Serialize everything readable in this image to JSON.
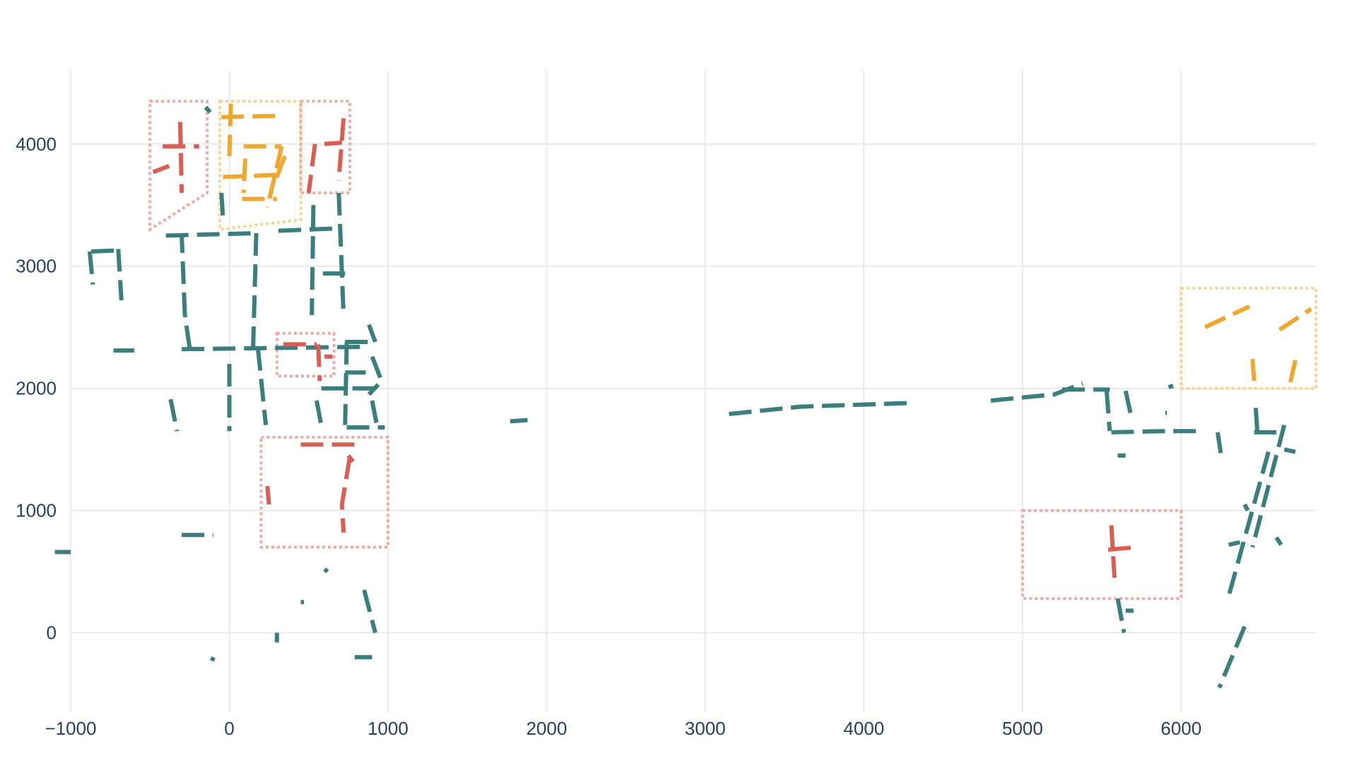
{
  "chart_data": {
    "type": "line",
    "title": "",
    "xlabel": "",
    "ylabel": "",
    "xlim": [
      -1000,
      6850
    ],
    "ylim": [
      -650,
      4600
    ],
    "x_ticks": [
      -1000,
      0,
      1000,
      2000,
      3000,
      4000,
      5000,
      6000
    ],
    "x_tick_labels": [
      "−1000",
      "0",
      "1000",
      "2000",
      "3000",
      "4000",
      "5000",
      "6000"
    ],
    "y_ticks": [
      0,
      1000,
      2000,
      3000,
      4000
    ],
    "y_tick_labels": [
      "0",
      "1000",
      "2000",
      "3000",
      "4000"
    ],
    "grid": true,
    "legend": "none",
    "colors": {
      "network": "#3a7f7d",
      "red": "#d95f55",
      "orange": "#eea72f",
      "red_box": "#eea9a4",
      "orange_box": "#f6d48e",
      "grid": "#e5e5e5",
      "tick_text": "#2a3f5f"
    },
    "series": [
      {
        "color_key": "network",
        "dashed": true,
        "lines": [
          [
            [
              -400,
              3250
            ],
            [
              170,
              3270
            ]
          ],
          [
            [
              170,
              3270
            ],
            [
              150,
              2330
            ]
          ],
          [
            [
              -300,
              2320
            ],
            [
              850,
              2340
            ]
          ],
          [
            [
              -280,
              2600
            ],
            [
              -300,
              3250
            ]
          ],
          [
            [
              -250,
              2330
            ],
            [
              -280,
              2600
            ]
          ],
          [
            [
              180,
              2330
            ],
            [
              230,
              1700
            ]
          ],
          [
            [
              310,
              3290
            ],
            [
              700,
              3310
            ]
          ],
          [
            [
              690,
              3600
            ],
            [
              720,
              2600
            ]
          ],
          [
            [
              530,
              3500
            ],
            [
              520,
              2600
            ]
          ],
          [
            [
              -870,
              3120
            ],
            [
              -690,
              3130
            ]
          ],
          [
            [
              -700,
              3140
            ],
            [
              -680,
              2720
            ]
          ],
          [
            [
              -880,
              3120
            ],
            [
              -860,
              2850
            ]
          ],
          [
            [
              -730,
              2310
            ],
            [
              -600,
              2310
            ]
          ],
          [
            [
              -370,
              1910
            ],
            [
              -330,
              1650
            ]
          ],
          [
            [
              0,
              2200
            ],
            [
              0,
              1650
            ]
          ],
          [
            [
              590,
              2940
            ],
            [
              730,
              2940
            ]
          ],
          [
            [
              730,
              2380
            ],
            [
              920,
              2380
            ]
          ],
          [
            [
              740,
              2380
            ],
            [
              730,
              1700
            ]
          ],
          [
            [
              880,
              2520
            ],
            [
              920,
              2380
            ]
          ],
          [
            [
              900,
              2260
            ],
            [
              960,
              2060
            ],
            [
              880,
              1950
            ]
          ],
          [
            [
              730,
              2130
            ],
            [
              860,
              2130
            ]
          ],
          [
            [
              580,
              2000
            ],
            [
              920,
              2000
            ]
          ],
          [
            [
              550,
              1900
            ],
            [
              580,
              1700
            ]
          ],
          [
            [
              740,
              1680
            ],
            [
              980,
              1680
            ]
          ],
          [
            [
              900,
              1900
            ],
            [
              930,
              1700
            ]
          ],
          [
            [
              -300,
              800
            ],
            [
              -100,
              800
            ]
          ],
          [
            [
              -1100,
              660
            ],
            [
              -1000,
              660
            ]
          ],
          [
            [
              850,
              350
            ],
            [
              920,
              0
            ]
          ],
          [
            [
              790,
              -200
            ],
            [
              900,
              -200
            ]
          ],
          [
            [
              450,
              250
            ],
            [
              470,
              250
            ]
          ],
          [
            [
              300,
              0
            ],
            [
              300,
              -80
            ]
          ],
          [
            [
              -100,
              -200
            ],
            [
              -110,
              -230
            ]
          ],
          [
            [
              600,
              520
            ],
            [
              620,
              500
            ]
          ],
          [
            [
              -150,
              4300
            ],
            [
              -120,
              4260
            ]
          ],
          [
            [
              -50,
              3600
            ],
            [
              -40,
              3400
            ]
          ],
          [
            [
              1770,
              1730
            ],
            [
              1880,
              1740
            ]
          ],
          [
            [
              3150,
              1790
            ],
            [
              3600,
              1850
            ],
            [
              4300,
              1880
            ]
          ],
          [
            [
              4800,
              1900
            ],
            [
              5200,
              1950
            ],
            [
              5380,
              2040
            ]
          ],
          [
            [
              5250,
              1990
            ],
            [
              5550,
              1990
            ]
          ],
          [
            [
              5530,
              1980
            ],
            [
              5550,
              1650
            ]
          ],
          [
            [
              5560,
              1640
            ],
            [
              5900,
              1650
            ]
          ],
          [
            [
              5650,
              1980
            ],
            [
              5680,
              1800
            ]
          ],
          [
            [
              5950,
              1650
            ],
            [
              6100,
              1650
            ]
          ],
          [
            [
              6230,
              1640
            ],
            [
              6250,
              1470
            ]
          ],
          [
            [
              6460,
              1640
            ],
            [
              6600,
              1640
            ]
          ],
          [
            [
              6470,
              1840
            ],
            [
              6480,
              1640
            ]
          ],
          [
            [
              6650,
              1700
            ],
            [
              6450,
              700
            ]
          ],
          [
            [
              6650,
              1500
            ],
            [
              6720,
              1480
            ]
          ],
          [
            [
              6550,
              1480
            ],
            [
              6300,
              300
            ]
          ],
          [
            [
              5600,
              1450
            ],
            [
              5650,
              1450
            ]
          ],
          [
            [
              5600,
              280
            ],
            [
              5640,
              0
            ]
          ],
          [
            [
              5650,
              180
            ],
            [
              5700,
              180
            ]
          ],
          [
            [
              6300,
              720
            ],
            [
              6370,
              740
            ]
          ],
          [
            [
              6400,
              1050
            ],
            [
              6420,
              1000
            ]
          ],
          [
            [
              6600,
              780
            ],
            [
              6630,
              720
            ]
          ],
          [
            [
              6400,
              50
            ],
            [
              6240,
              -450
            ]
          ],
          [
            [
              5920,
              2010
            ],
            [
              5950,
              2020
            ]
          ],
          [
            [
              5900,
              1800
            ],
            [
              5910,
              1800
            ]
          ]
        ]
      },
      {
        "color_key": "red",
        "dashed": true,
        "lines": [
          [
            [
              -420,
              3980
            ],
            [
              -190,
              3980
            ]
          ],
          [
            [
              -310,
              4180
            ],
            [
              -300,
              3600
            ]
          ],
          [
            [
              -480,
              3770
            ],
            [
              -380,
              3820
            ]
          ],
          [
            [
              600,
              4000
            ],
            [
              710,
              4010
            ]
          ],
          [
            [
              720,
              4210
            ],
            [
              690,
              3700
            ]
          ],
          [
            [
              540,
              4000
            ],
            [
              500,
              3600
            ]
          ],
          [
            [
              340,
              2360
            ],
            [
              550,
              2360
            ]
          ],
          [
            [
              560,
              2360
            ],
            [
              570,
              2060
            ]
          ],
          [
            [
              600,
              2260
            ],
            [
              650,
              2260
            ]
          ],
          [
            [
              450,
              1540
            ],
            [
              800,
              1540
            ]
          ],
          [
            [
              760,
              1440
            ],
            [
              710,
              1050
            ],
            [
              720,
              820
            ]
          ],
          [
            [
              750,
              1450
            ],
            [
              780,
              1400
            ]
          ],
          [
            [
              240,
              1200
            ],
            [
              250,
              1050
            ]
          ],
          [
            [
              5540,
              680
            ],
            [
              5720,
              700
            ]
          ],
          [
            [
              5560,
              880
            ],
            [
              5580,
              450
            ]
          ]
        ]
      },
      {
        "color_key": "orange",
        "dashed": true,
        "lines": [
          [
            [
              -50,
              4220
            ],
            [
              310,
              4230
            ]
          ],
          [
            [
              10,
              4330
            ],
            [
              0,
              3900
            ]
          ],
          [
            [
              90,
              3980
            ],
            [
              330,
              3980
            ]
          ],
          [
            [
              330,
              3980
            ],
            [
              240,
              3480
            ]
          ],
          [
            [
              -40,
              3730
            ],
            [
              350,
              3750
            ]
          ],
          [
            [
              80,
              3550
            ],
            [
              300,
              3550
            ]
          ],
          [
            [
              100,
              3880
            ],
            [
              90,
              3600
            ]
          ],
          [
            [
              350,
              3900
            ],
            [
              290,
              3700
            ]
          ],
          [
            [
              6150,
              2500
            ],
            [
              6430,
              2670
            ]
          ],
          [
            [
              6620,
              2480
            ],
            [
              6820,
              2650
            ]
          ],
          [
            [
              6450,
              2240
            ],
            [
              6460,
              2060
            ]
          ],
          [
            [
              6720,
              2230
            ],
            [
              6680,
              2000
            ]
          ]
        ]
      }
    ],
    "regions": [
      {
        "color_key": "red_box",
        "points": [
          [
            -500,
            4350
          ],
          [
            -140,
            4350
          ],
          [
            -140,
            3600
          ],
          [
            -500,
            3300
          ]
        ]
      },
      {
        "color_key": "orange_box",
        "points": [
          [
            -60,
            4350
          ],
          [
            450,
            4350
          ],
          [
            450,
            3380
          ],
          [
            -60,
            3300
          ]
        ]
      },
      {
        "color_key": "red_box",
        "points": [
          [
            450,
            4350
          ],
          [
            760,
            4350
          ],
          [
            760,
            3600
          ],
          [
            450,
            3600
          ]
        ]
      },
      {
        "color_key": "red_box",
        "points": [
          [
            300,
            2450
          ],
          [
            660,
            2450
          ],
          [
            660,
            2100
          ],
          [
            300,
            2100
          ]
        ]
      },
      {
        "color_key": "red_box",
        "points": [
          [
            200,
            1600
          ],
          [
            1000,
            1600
          ],
          [
            1000,
            700
          ],
          [
            200,
            700
          ]
        ]
      },
      {
        "color_key": "red_box",
        "points": [
          [
            5000,
            1000
          ],
          [
            6000,
            1000
          ],
          [
            6000,
            280
          ],
          [
            5000,
            280
          ]
        ]
      },
      {
        "color_key": "orange_box",
        "points": [
          [
            6000,
            2820
          ],
          [
            6850,
            2820
          ],
          [
            6850,
            2000
          ],
          [
            6000,
            2000
          ]
        ]
      }
    ]
  }
}
